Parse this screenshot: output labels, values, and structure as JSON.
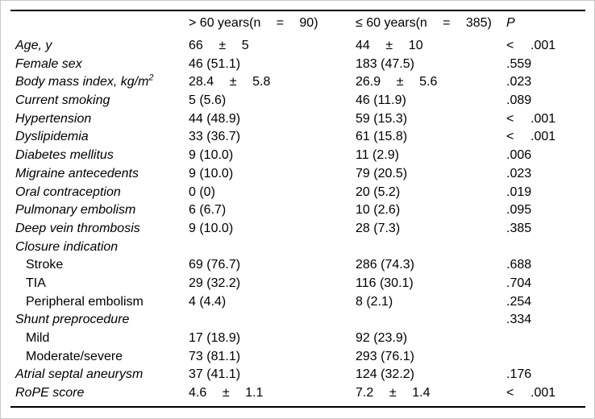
{
  "colors": {
    "background": "#ffffff",
    "text": "#000000",
    "rule": "#000000",
    "outer_border": "#c9c9c9"
  },
  "table": {
    "pm_symbol": "±",
    "lt_symbol": "<",
    "header": {
      "group1": {
        "text": "> 60 years(n",
        "eq": "=",
        "n": "90)"
      },
      "group2": {
        "text": "≤ 60 years(n",
        "eq": "=",
        "n": "385)"
      },
      "p_label": "P"
    },
    "rows": [
      {
        "label": "Age, y",
        "italic": true,
        "c1": {
          "pm": [
            "66",
            "5"
          ]
        },
        "c2": {
          "pm": [
            "44",
            "10"
          ]
        },
        "p": {
          "lt": true,
          "v": ".001"
        }
      },
      {
        "label": "Female sex",
        "italic": true,
        "c1": {
          "t": "46 (51.1)"
        },
        "c2": {
          "t": "183 (47.5)"
        },
        "p": {
          "v": ".559"
        }
      },
      {
        "label": "Body mass index, kg/m",
        "sup": "2",
        "italic": true,
        "c1": {
          "pm": [
            "28.4",
            "5.8"
          ]
        },
        "c2": {
          "pm": [
            "26.9",
            "5.6"
          ]
        },
        "p": {
          "v": ".023"
        }
      },
      {
        "label": "Current smoking",
        "italic": true,
        "c1": {
          "t": "5 (5.6)"
        },
        "c2": {
          "t": "46 (11.9)"
        },
        "p": {
          "v": ".089"
        }
      },
      {
        "label": "Hypertension",
        "italic": true,
        "c1": {
          "t": "44 (48.9)"
        },
        "c2": {
          "t": "59 (15.3)"
        },
        "p": {
          "lt": true,
          "v": ".001"
        }
      },
      {
        "label": "Dyslipidemia",
        "italic": true,
        "c1": {
          "t": "33 (36.7)"
        },
        "c2": {
          "t": "61 (15.8)"
        },
        "p": {
          "lt": true,
          "v": ".001"
        }
      },
      {
        "label": "Diabetes mellitus",
        "italic": true,
        "c1": {
          "t": "9 (10.0)"
        },
        "c2": {
          "t": "11 (2.9)"
        },
        "p": {
          "v": ".006"
        }
      },
      {
        "label": "Migraine antecedents",
        "italic": true,
        "c1": {
          "t": "9 (10.0)"
        },
        "c2": {
          "t": "79 (20.5)"
        },
        "p": {
          "v": ".023"
        }
      },
      {
        "label": "Oral contraception",
        "italic": true,
        "c1": {
          "t": "0 (0)"
        },
        "c2": {
          "t": "20 (5.2)"
        },
        "p": {
          "v": ".019"
        }
      },
      {
        "label": "Pulmonary embolism",
        "italic": true,
        "c1": {
          "t": "6 (6.7)"
        },
        "c2": {
          "t": "10 (2.6)"
        },
        "p": {
          "v": ".095"
        }
      },
      {
        "label": "Deep vein thrombosis",
        "italic": true,
        "c1": {
          "t": "9 (10.0)"
        },
        "c2": {
          "t": "28 (7.3)"
        },
        "p": {
          "v": ".385"
        }
      },
      {
        "label": "Closure indication",
        "italic": true
      },
      {
        "label": "Stroke",
        "indent": true,
        "c1": {
          "t": "69 (76.7)"
        },
        "c2": {
          "t": "286 (74.3)"
        },
        "p": {
          "v": ".688"
        }
      },
      {
        "label": "TIA",
        "indent": true,
        "c1": {
          "t": "29 (32.2)"
        },
        "c2": {
          "t": "116 (30.1)"
        },
        "p": {
          "v": ".704"
        }
      },
      {
        "label": "Peripheral embolism",
        "indent": true,
        "c1": {
          "t": "4 (4.4)"
        },
        "c2": {
          "t": "8 (2.1)"
        },
        "p": {
          "v": ".254"
        }
      },
      {
        "label": "Shunt preprocedure",
        "italic": true,
        "p": {
          "v": ".334"
        }
      },
      {
        "label": "Mild",
        "indent": true,
        "c1": {
          "t": "17 (18.9)"
        },
        "c2": {
          "t": "92 (23.9)"
        }
      },
      {
        "label": "Moderate/severe",
        "indent": true,
        "c1": {
          "t": "73 (81.1)"
        },
        "c2": {
          "t": "293 (76.1)"
        }
      },
      {
        "label": "Atrial septal aneurysm",
        "italic": true,
        "c1": {
          "t": "37 (41.1)"
        },
        "c2": {
          "t": "124 (32.2)"
        },
        "p": {
          "v": ".176"
        }
      },
      {
        "label": "RoPE score",
        "italic": true,
        "c1": {
          "pm": [
            "4.6",
            "1.1"
          ]
        },
        "c2": {
          "pm": [
            "7.2",
            "1.4"
          ]
        },
        "p": {
          "lt": true,
          "v": ".001"
        }
      }
    ]
  }
}
